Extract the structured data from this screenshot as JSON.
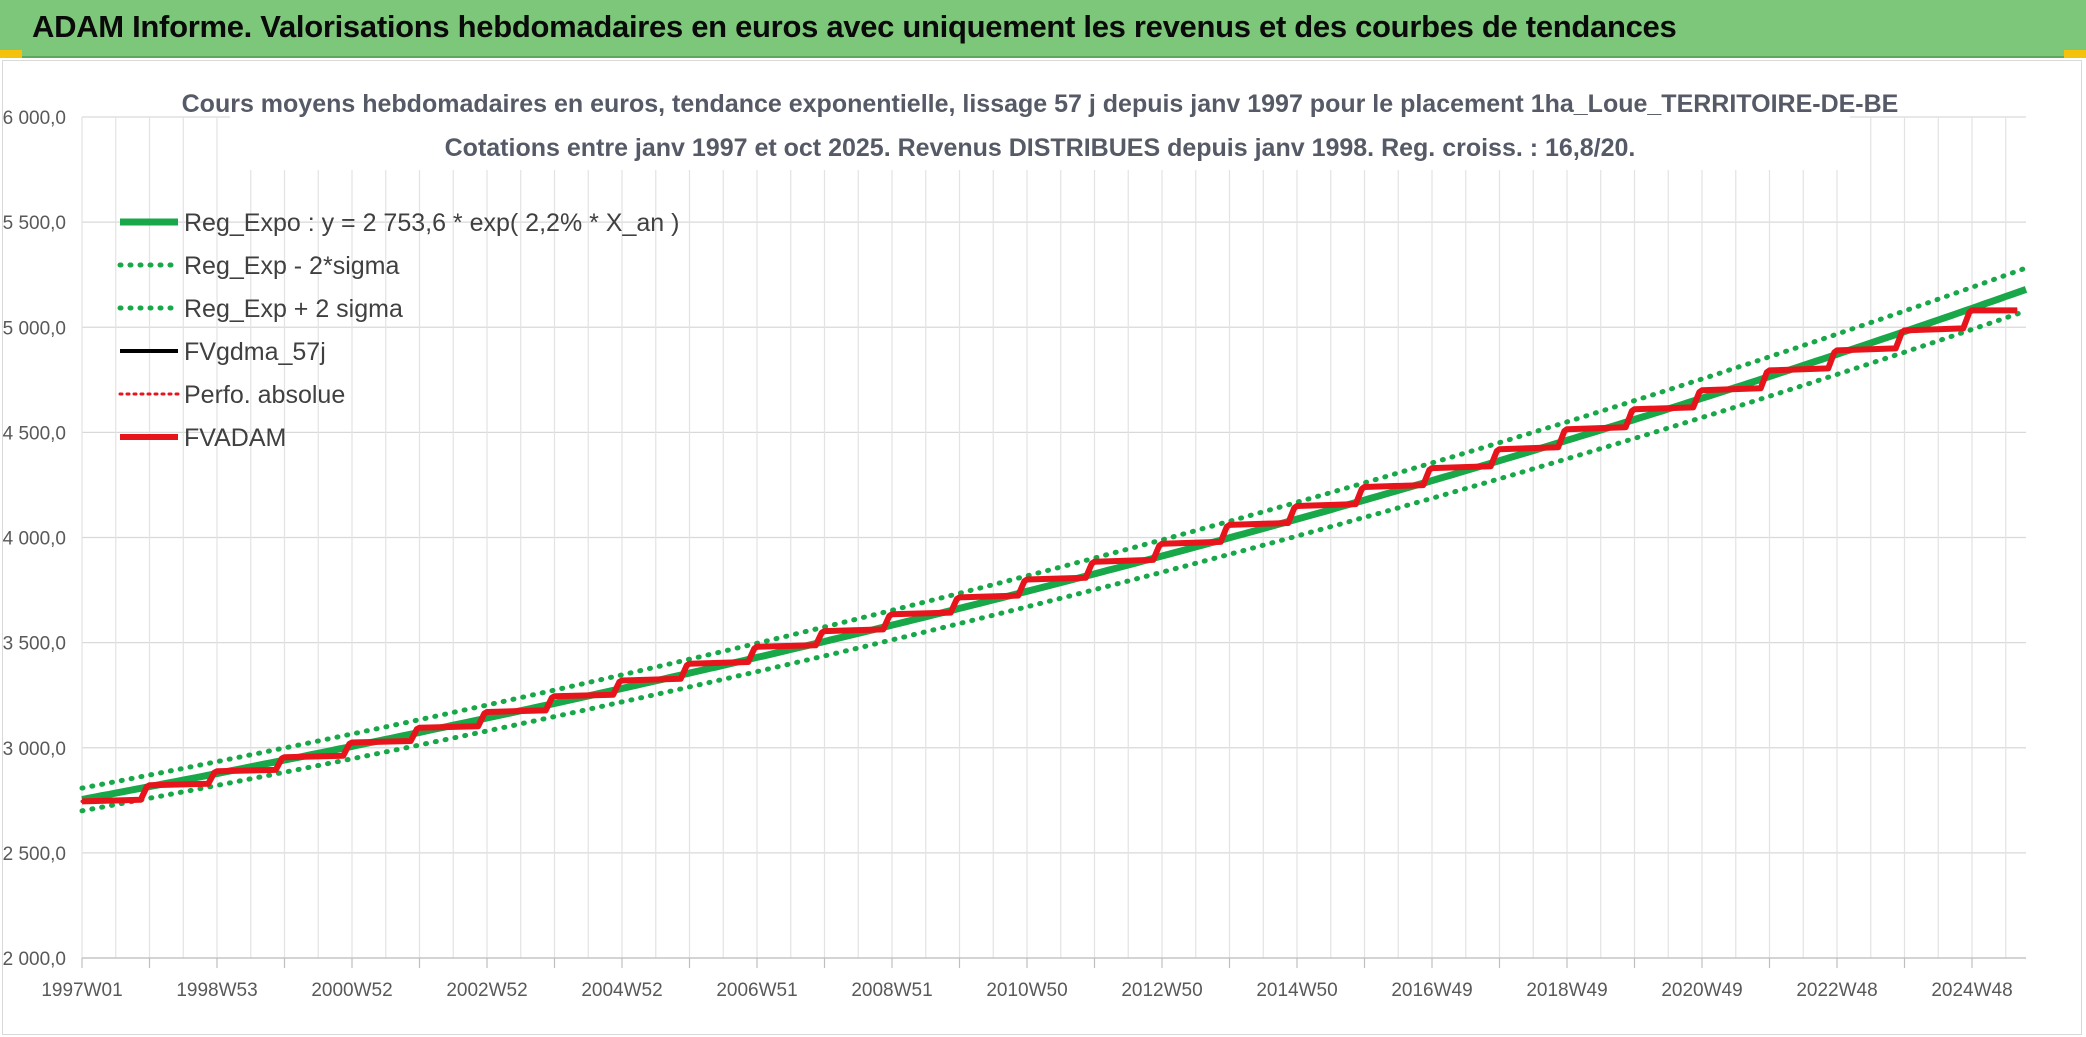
{
  "banner": {
    "title": "ADAM Informe. Valorisations hebdomadaires en euros avec uniquement les revenus et des courbes de tendances"
  },
  "chart_data": {
    "type": "line",
    "title": "Cours moyens hebdomadaires en euros, tendance exponentielle, lissage 57 j depuis janv 1997 pour le placement 1ha_Loue_TERRITOIRE-DE-BE",
    "subtitle": "Cotations entre janv 1997 et oct 2025. Revenus DISTRIBUES depuis janv 1998. Reg. croiss. : 16,8/20.",
    "xlabel": "",
    "ylabel": "",
    "x_range": [
      1997.0,
      2025.8
    ],
    "ylim": [
      2000,
      6000
    ],
    "y_ticks": [
      2000,
      2500,
      3000,
      3500,
      4000,
      4500,
      5000,
      5500,
      6000
    ],
    "y_tick_labels": [
      "2 000,0",
      "2 500,0",
      "3 000,0",
      "3 500,0",
      "4 000,0",
      "4 500,0",
      "5 000,0",
      "5 500,0",
      "6 000,0"
    ],
    "x_tick_labels": [
      "1997W01",
      "1998W53",
      "2000W52",
      "2002W52",
      "2004W52",
      "2006W51",
      "2008W51",
      "2010W50",
      "2012W50",
      "2014W50",
      "2016W49",
      "2018W49",
      "2020W49",
      "2022W48",
      "2024W48"
    ],
    "x_tick_values": [
      1997.0,
      1999.0,
      2001.0,
      2003.0,
      2005.0,
      2007.0,
      2009.0,
      2011.0,
      2013.0,
      2015.0,
      2017.0,
      2019.0,
      2021.0,
      2023.0,
      2025.0
    ],
    "grid": true,
    "legend_position": "top-left",
    "series": [
      {
        "name": "Reg_Expo : y = 2 753,6 * exp( 2,2% *  X_an )",
        "color": "#18a84a",
        "style": "solid",
        "x": [
          1997.0,
          2001.0,
          2005.0,
          2009.0,
          2013.0,
          2017.0,
          2021.0,
          2025.8
        ],
        "values": [
          2754,
          3005,
          3280,
          3579,
          3906,
          4262,
          4651,
          5180
        ]
      },
      {
        "name": "Reg_Exp - 2*sigma",
        "color": "#18a84a",
        "style": "dotted",
        "x": [
          1997.0,
          2001.0,
          2005.0,
          2009.0,
          2013.0,
          2017.0,
          2021.0,
          2025.8
        ],
        "values": [
          2700,
          2946,
          3215,
          3509,
          3829,
          4178,
          4560,
          5078
        ]
      },
      {
        "name": "Reg_Exp + 2 sigma",
        "color": "#18a84a",
        "style": "dotted",
        "x": [
          1997.0,
          2001.0,
          2005.0,
          2009.0,
          2013.0,
          2017.0,
          2021.0,
          2025.8
        ],
        "values": [
          2808,
          3064,
          3344,
          3649,
          3982,
          4346,
          4742,
          5282
        ]
      },
      {
        "name": "FVgdma_57j",
        "color": "#000000",
        "style": "solid",
        "x": [
          1997.0,
          1998.0,
          1999.0,
          2000.0,
          2001.0,
          2002.0,
          2003.0,
          2004.0,
          2005.0,
          2006.0,
          2007.0,
          2008.0,
          2009.0,
          2010.0,
          2011.0,
          2012.0,
          2013.0,
          2014.0,
          2015.0,
          2016.0,
          2017.0,
          2018.0,
          2019.0,
          2020.0,
          2021.0,
          2022.0,
          2023.0,
          2024.0,
          2025.0
        ],
        "values": [
          2745,
          2822,
          2888,
          2955,
          3025,
          3095,
          3170,
          3245,
          3320,
          3400,
          3480,
          3555,
          3635,
          3715,
          3800,
          3885,
          3970,
          4060,
          4150,
          4240,
          4330,
          4420,
          4515,
          4610,
          4700,
          4795,
          4890,
          4985,
          5080
        ]
      },
      {
        "name": "Perfo. absolue",
        "color": "#e8141b",
        "style": "dotted",
        "x": [
          1997.0,
          1998.0,
          1999.0,
          2000.0,
          2001.0,
          2002.0,
          2003.0,
          2004.0,
          2005.0,
          2006.0,
          2007.0,
          2008.0,
          2009.0,
          2010.0,
          2011.0,
          2012.0,
          2013.0,
          2014.0,
          2015.0,
          2016.0,
          2017.0,
          2018.0,
          2019.0,
          2020.0,
          2021.0,
          2022.0,
          2023.0,
          2024.0,
          2025.0
        ],
        "values": [
          2745,
          2822,
          2888,
          2955,
          3025,
          3095,
          3170,
          3245,
          3320,
          3400,
          3480,
          3555,
          3635,
          3715,
          3800,
          3885,
          3970,
          4060,
          4150,
          4240,
          4330,
          4420,
          4515,
          4610,
          4700,
          4795,
          4890,
          4985,
          5080
        ]
      },
      {
        "name": "FVADAM",
        "color": "#e8141b",
        "style": "solid",
        "x": [
          1997.0,
          1998.0,
          1999.0,
          2000.0,
          2001.0,
          2002.0,
          2003.0,
          2004.0,
          2005.0,
          2006.0,
          2007.0,
          2008.0,
          2009.0,
          2010.0,
          2011.0,
          2012.0,
          2013.0,
          2014.0,
          2015.0,
          2016.0,
          2017.0,
          2018.0,
          2019.0,
          2020.0,
          2021.0,
          2022.0,
          2023.0,
          2024.0,
          2025.0
        ],
        "values": [
          2745,
          2822,
          2888,
          2955,
          3025,
          3095,
          3170,
          3245,
          3320,
          3400,
          3480,
          3555,
          3635,
          3715,
          3800,
          3885,
          3970,
          4060,
          4150,
          4240,
          4330,
          4420,
          4515,
          4610,
          4700,
          4795,
          4890,
          4985,
          5080
        ]
      }
    ]
  }
}
